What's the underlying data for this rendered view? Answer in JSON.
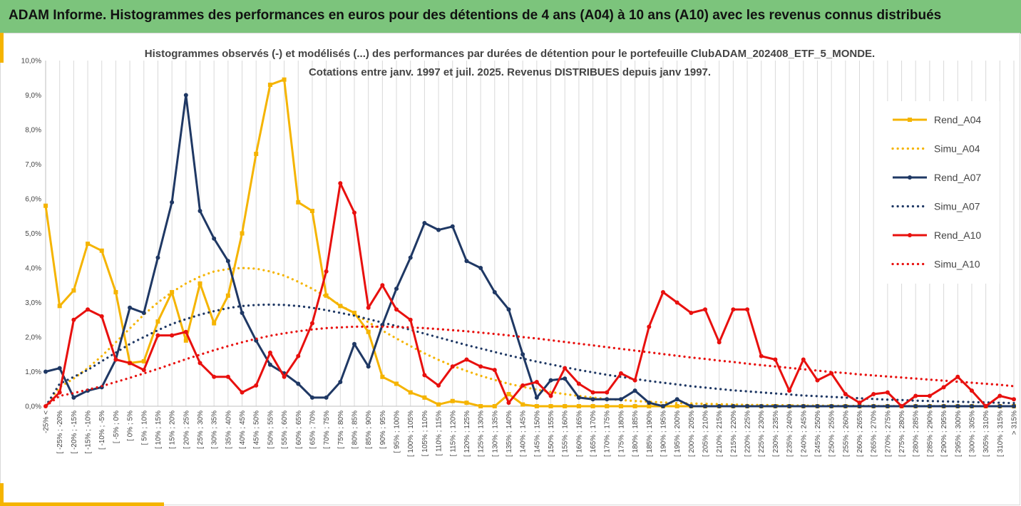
{
  "banner": {
    "title": "ADAM Informe. Histogrammes des performances en euros pour des détentions de 4 ans (A04) à 10 ans (A10) avec les revenus connus distribués"
  },
  "chart_data": {
    "type": "line",
    "title": "Histogrammes observés (-) et modélisés (...) des performances par durées de détention pour le portefeuille ClubADAM_202408_ETF_5_MONDE.",
    "subtitle": "Cotations entre janv. 1997 et juil. 2025. Revenus DISTRIBUES depuis janv 1997.",
    "ylim": [
      0,
      10
    ],
    "yticks": [
      "0,0%",
      "1,0%",
      "2,0%",
      "3,0%",
      "4,0%",
      "5,0%",
      "6,0%",
      "7,0%",
      "8,0%",
      "9,0%",
      "10,0%"
    ],
    "grid": "vertical",
    "legend_position": "right",
    "categories": [
      "-25% <",
      "[ -25% ; -20%",
      "[ -20% ; -15%",
      "[ -15% ; -10%",
      "[ -10% ; -5%",
      "[ -5% ; 0%",
      "[ 0% ; 5%",
      "[ 5% ; 10%",
      "[ 10% ; 15%",
      "[ 15% ; 20%",
      "[ 20% ; 25%",
      "[ 25% ; 30%",
      "[ 30% ; 35%",
      "[ 35% ; 40%",
      "[ 40% ; 45%",
      "[ 45% ; 50%",
      "[ 50% ; 55%",
      "[ 55% ; 60%",
      "[ 60% ; 65%",
      "[ 65% ; 70%",
      "[ 70% ; 75%",
      "[ 75% ; 80%",
      "[ 80% ; 85%",
      "[ 85% ; 90%",
      "[ 90% ; 95%",
      "[ 95% ; 100%",
      "[ 100% ; 105%",
      "[ 105% ; 110%",
      "[ 110% ; 115%",
      "[ 115% ; 120%",
      "[ 120% ; 125%",
      "[ 125% ; 130%",
      "[ 130% ; 135%",
      "[ 135% ; 140%",
      "[ 140% ; 145%",
      "[ 145% ; 150%",
      "[ 150% ; 155%",
      "[ 155% ; 160%",
      "[ 160% ; 165%",
      "[ 165% ; 170%",
      "[ 170% ; 175%",
      "[ 175% ; 180%",
      "[ 180% ; 185%",
      "[ 185% ; 190%",
      "[ 190% ; 195%",
      "[ 195% ; 200%",
      "[ 200% ; 205%",
      "[ 205% ; 210%",
      "[ 210% ; 215%",
      "[ 215% ; 220%",
      "[ 220% ; 225%",
      "[ 225% ; 230%",
      "[ 230% ; 235%",
      "[ 235% ; 240%",
      "[ 240% ; 245%",
      "[ 245% ; 250%",
      "[ 250% ; 255%",
      "[ 255% ; 260%",
      "[ 260% ; 265%",
      "[ 265% ; 270%",
      "[ 270% ; 275%",
      "[ 275% ; 280%",
      "[ 280% ; 285%",
      "[ 285% ; 290%",
      "[ 290% ; 295%",
      "[ 295% ; 300%",
      "[ 300% ; 305%",
      "[ 305% ; 310%",
      "[ 310% ; 315%",
      "> 315%"
    ],
    "series": [
      {
        "name": "Rend_A04",
        "style": "solid",
        "marker": "square",
        "color": "#f5b400",
        "values": [
          5.8,
          2.9,
          3.35,
          4.7,
          4.5,
          3.3,
          1.25,
          1.3,
          2.45,
          3.3,
          1.9,
          3.55,
          2.4,
          3.2,
          5.0,
          7.3,
          9.3,
          9.45,
          5.9,
          5.65,
          3.2,
          2.9,
          2.7,
          2.15,
          0.85,
          0.65,
          0.4,
          0.25,
          0.05,
          0.15,
          0.1,
          0.0,
          0.0,
          0.35,
          0.05,
          0,
          0,
          0,
          0,
          0,
          0,
          0,
          0,
          0,
          0,
          0,
          0,
          0,
          0,
          0,
          0,
          0,
          0,
          0,
          0,
          0,
          0,
          0,
          0,
          0,
          0,
          0,
          0,
          0,
          0,
          0,
          0,
          0,
          0,
          0
        ]
      },
      {
        "name": "Simu_A04",
        "style": "dotted",
        "marker": "none",
        "color": "#f5b400",
        "values": [
          0.0,
          0.55,
          0.8,
          1.1,
          1.45,
          1.85,
          2.25,
          2.65,
          3.0,
          3.3,
          3.55,
          3.75,
          3.9,
          3.97,
          4.0,
          3.98,
          3.9,
          3.78,
          3.6,
          3.4,
          3.17,
          2.93,
          2.68,
          2.43,
          2.19,
          1.96,
          1.74,
          1.53,
          1.34,
          1.17,
          1.02,
          0.88,
          0.76,
          0.65,
          0.56,
          0.48,
          0.41,
          0.35,
          0.3,
          0.25,
          0.21,
          0.18,
          0.15,
          0.13,
          0.11,
          0.09,
          0.08,
          0.07,
          0.06,
          0.05,
          0.04,
          0.035,
          0.03,
          0.025,
          0.02,
          0.017,
          0.014,
          0.012,
          0.01,
          0.008,
          0.007,
          0.006,
          0.005,
          0.004,
          0.003,
          0.003,
          0.002,
          0.002,
          0.001,
          0.001
        ]
      },
      {
        "name": "Rend_A07",
        "style": "solid",
        "marker": "circle",
        "color": "#1f3864",
        "values": [
          1.0,
          1.1,
          0.25,
          0.45,
          0.55,
          1.35,
          2.85,
          2.7,
          4.3,
          5.9,
          9.0,
          5.65,
          4.85,
          4.2,
          2.7,
          1.9,
          1.2,
          0.95,
          0.65,
          0.25,
          0.25,
          0.7,
          1.8,
          1.15,
          2.35,
          3.4,
          4.3,
          5.3,
          5.1,
          5.2,
          4.2,
          4.0,
          3.3,
          2.8,
          1.5,
          0.25,
          0.75,
          0.8,
          0.25,
          0.2,
          0.2,
          0.2,
          0.45,
          0.1,
          0.0,
          0.2,
          0,
          0,
          0,
          0,
          0,
          0,
          0,
          0,
          0,
          0,
          0,
          0,
          0,
          0,
          0,
          0,
          0,
          0,
          0,
          0,
          0,
          0,
          0,
          0
        ]
      },
      {
        "name": "Simu_A07",
        "style": "dotted",
        "marker": "none",
        "color": "#1f3864",
        "values": [
          0.0,
          0.65,
          0.85,
          1.05,
          1.3,
          1.55,
          1.8,
          2.0,
          2.2,
          2.38,
          2.52,
          2.65,
          2.75,
          2.84,
          2.9,
          2.93,
          2.94,
          2.93,
          2.9,
          2.85,
          2.78,
          2.7,
          2.62,
          2.52,
          2.42,
          2.32,
          2.21,
          2.1,
          1.99,
          1.88,
          1.77,
          1.67,
          1.57,
          1.47,
          1.38,
          1.29,
          1.21,
          1.13,
          1.05,
          0.98,
          0.91,
          0.85,
          0.79,
          0.73,
          0.68,
          0.63,
          0.58,
          0.54,
          0.5,
          0.46,
          0.43,
          0.4,
          0.37,
          0.34,
          0.31,
          0.29,
          0.27,
          0.25,
          0.23,
          0.21,
          0.19,
          0.18,
          0.16,
          0.15,
          0.14,
          0.13,
          0.12,
          0.11,
          0.1,
          0.09
        ]
      },
      {
        "name": "Rend_A10",
        "style": "solid",
        "marker": "circle",
        "color": "#e8100e",
        "values": [
          0.0,
          0.4,
          2.5,
          2.8,
          2.6,
          1.35,
          1.25,
          1.05,
          2.05,
          2.05,
          2.15,
          1.25,
          0.85,
          0.85,
          0.4,
          0.6,
          1.55,
          0.85,
          1.45,
          2.4,
          3.9,
          6.45,
          5.6,
          2.85,
          3.5,
          2.8,
          2.5,
          0.9,
          0.6,
          1.15,
          1.35,
          1.15,
          1.05,
          0.1,
          0.6,
          0.7,
          0.3,
          1.1,
          0.65,
          0.4,
          0.4,
          0.95,
          0.75,
          2.3,
          3.3,
          3.0,
          2.7,
          2.8,
          1.85,
          2.8,
          2.8,
          1.45,
          1.35,
          0.45,
          1.35,
          0.75,
          0.95,
          0.35,
          0.1,
          0.35,
          0.4,
          0.0,
          0.3,
          0.3,
          0.55,
          0.85,
          0.45,
          0.0,
          0.3,
          0.2
        ]
      },
      {
        "name": "Simu_A10",
        "style": "dotted",
        "marker": "none",
        "color": "#e8100e",
        "values": [
          0.0,
          0.3,
          0.38,
          0.48,
          0.58,
          0.7,
          0.82,
          0.95,
          1.08,
          1.22,
          1.36,
          1.49,
          1.62,
          1.74,
          1.85,
          1.95,
          2.04,
          2.11,
          2.17,
          2.22,
          2.26,
          2.28,
          2.3,
          2.3,
          2.3,
          2.29,
          2.28,
          2.26,
          2.23,
          2.2,
          2.17,
          2.13,
          2.09,
          2.05,
          2.0,
          1.96,
          1.91,
          1.86,
          1.81,
          1.76,
          1.71,
          1.66,
          1.61,
          1.56,
          1.51,
          1.46,
          1.41,
          1.37,
          1.32,
          1.28,
          1.23,
          1.19,
          1.15,
          1.11,
          1.07,
          1.03,
          0.99,
          0.96,
          0.92,
          0.89,
          0.86,
          0.83,
          0.8,
          0.77,
          0.74,
          0.71,
          0.68,
          0.65,
          0.62,
          0.58
        ]
      }
    ]
  }
}
